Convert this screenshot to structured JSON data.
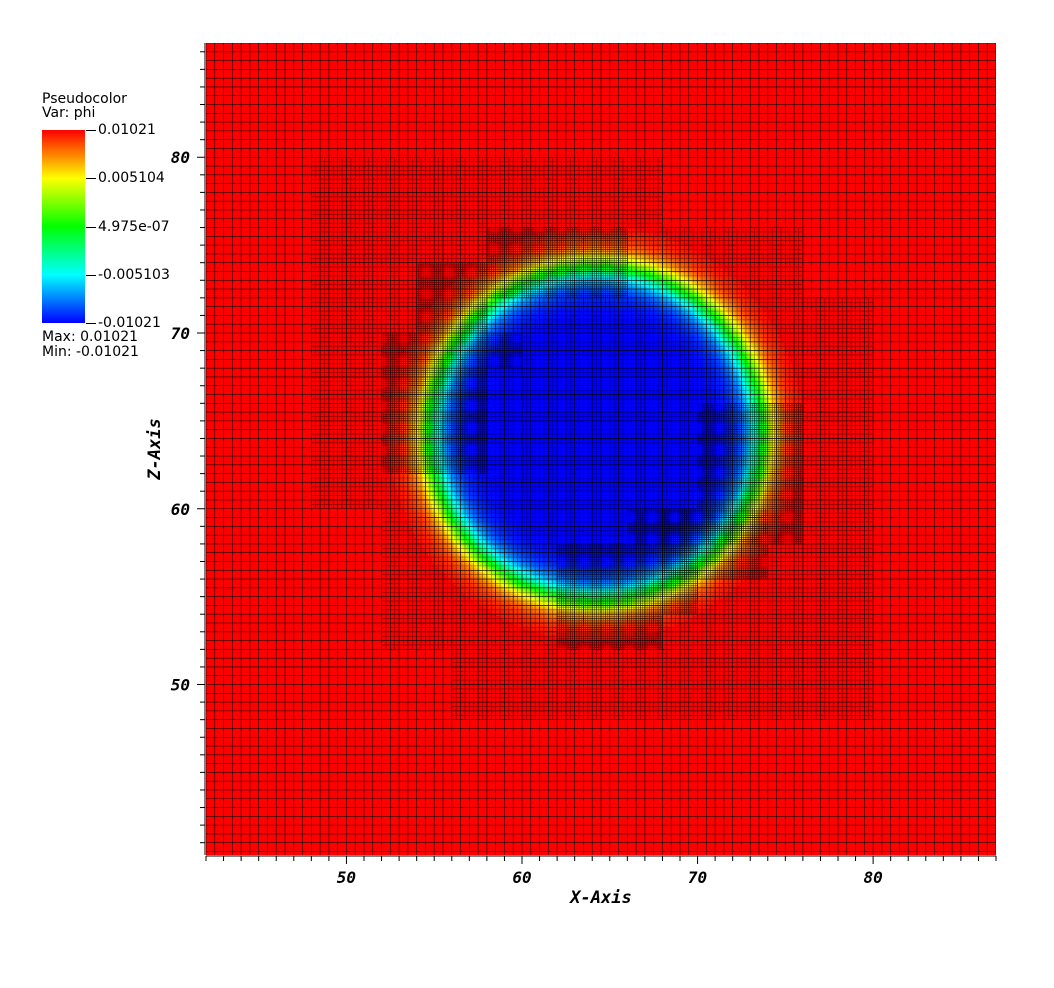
{
  "legend": {
    "title": "Pseudocolor",
    "var_label": "Var: phi",
    "max_label": "Max:  0.01021",
    "min_label": "Min: -0.01021",
    "ticks": [
      "0.01021",
      "0.005104",
      "4.975e-07",
      "-0.005103",
      "-0.01021"
    ]
  },
  "colors": {
    "outside": "#ff0000",
    "ring_high": "#ffff00",
    "ring_mid": "#00ff00",
    "ring_low": "#00ffff",
    "inside": "#0000ff",
    "grid": "#000000"
  },
  "chart_data": {
    "type": "heatmap",
    "variable": "phi",
    "xlabel": "X-Axis",
    "ylabel": "Z-Axis",
    "xlim": [
      42,
      87
    ],
    "ylim": [
      40.3,
      86.5
    ],
    "xticks": [
      50,
      60,
      70,
      80
    ],
    "yticks": [
      50,
      60,
      70,
      80
    ],
    "colormap": "hot_desaturated_rainbow",
    "value_range": [
      -0.01021,
      0.01021
    ],
    "field": {
      "kind": "circular_interface",
      "center": [
        64.2,
        64.3
      ],
      "radius": 9.5,
      "interface_width": 2.2,
      "inside_value": -0.01021,
      "outside_value": 0.01021
    },
    "grid": {
      "base_cell": 0.5,
      "refined_levels": [
        {
          "level": 1,
          "cell": 0.25,
          "boxes": [
            [
              48,
              60,
              68,
              80
            ],
            [
              52,
              52,
              56,
              60
            ],
            [
              56,
              48,
              80,
              60
            ],
            [
              68,
              60,
              76,
              76
            ],
            [
              76,
              60,
              80,
              72
            ]
          ]
        },
        {
          "level": 2,
          "cell": 0.125,
          "boxes": [
            [
              52,
              62,
              58,
              70
            ],
            [
              54,
              70,
              58,
              74
            ],
            [
              58,
              72,
              66,
              76
            ],
            [
              58,
              68,
              60,
              70
            ],
            [
              70,
              58,
              76,
              66
            ],
            [
              68,
              56,
              74,
              60
            ],
            [
              62,
              54,
              70,
              58
            ],
            [
              62,
              52,
              68,
              54
            ],
            [
              66,
              58,
              70,
              60
            ]
          ]
        }
      ]
    }
  }
}
